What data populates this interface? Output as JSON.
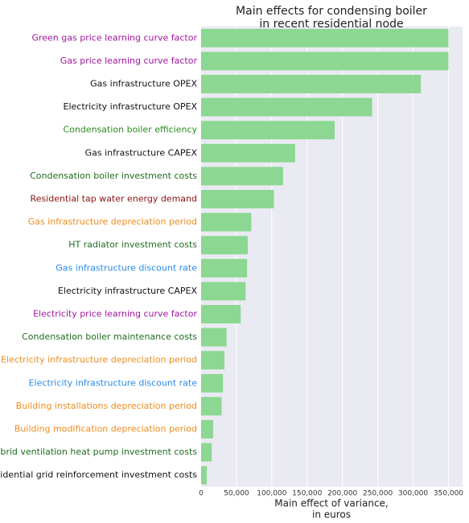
{
  "chart_data": {
    "type": "barh",
    "title": [
      "Main effects for condensing boiler",
      "in recent residential node"
    ],
    "x_label": [
      "Main effect of variance,",
      "in euros"
    ],
    "categories": [
      "Green gas price learning curve factor",
      "Gas price learning curve factor",
      "Gas infrastructure OPEX",
      "Electricity infrastructure OPEX",
      "Condensation boiler efficiency",
      "Gas infrastructure CAPEX",
      "Condensation boiler investment costs",
      "Residential tap water energy demand",
      "Gas infrastructure depreciation period",
      "HT radiator investment costs",
      "Gas infrastructure discount rate",
      "Electricity infrastructure CAPEX",
      "Electricity price learning curve factor",
      "Condensation boiler maintenance costs",
      "Electricity infrastructure depreciation period",
      "Electricity infrastructure discount rate",
      "Building installations depreciation period",
      "Building modification depreciation period",
      "Hybrid ventilation heat pump investment costs",
      "Residential grid reinforcement investment costs"
    ],
    "label_colors": [
      "#a0169f",
      "#a0169f",
      "#111111",
      "#111111",
      "#2a8a1f",
      "#111111",
      "#1f6e1f",
      "#8b1010",
      "#f08c1c",
      "#1f6e1f",
      "#2a8ce8",
      "#111111",
      "#a0169f",
      "#1f6e1f",
      "#f08c1c",
      "#2a8ce8",
      "#f08c1c",
      "#f08c1c",
      "#1f6e1f",
      "#111111"
    ],
    "values": [
      350000,
      350000,
      311000,
      242000,
      189000,
      133000,
      116000,
      103000,
      71000,
      66000,
      65000,
      63000,
      56000,
      36000,
      33000,
      31000,
      29000,
      17000,
      15000,
      8000
    ],
    "color": "#8cd792",
    "xlim": [
      0,
      370000
    ],
    "xticks": [
      0,
      {
        "value": 50000,
        "label": "50,000"
      },
      {
        "value": 100000,
        "label": "100,000"
      },
      {
        "value": 150000,
        "label": "150,000"
      },
      {
        "value": 200000,
        "label": "200,000"
      },
      {
        "value": 250000,
        "label": "250,000"
      },
      {
        "value": 300000,
        "label": "300,000"
      },
      {
        "value": 350000,
        "label": "350,000"
      }
    ],
    "grid": true
  }
}
